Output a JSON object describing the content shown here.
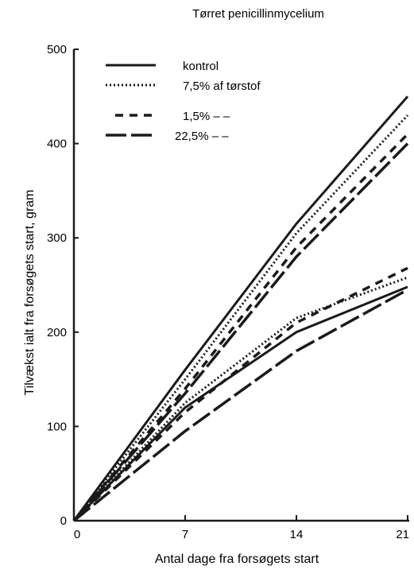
{
  "chart_data": {
    "type": "line",
    "title": "Tørret penicillinmycelium",
    "xlabel": "Antal dage fra forsøgets start",
    "ylabel": "Tilvækst ialt fra forsøgets start, gram",
    "x_ticks": [
      "0",
      "7",
      "14",
      "21"
    ],
    "y_ticks": [
      "0",
      "100",
      "200",
      "300",
      "400",
      "500"
    ],
    "xlim": [
      0,
      21
    ],
    "ylim": [
      0,
      500
    ],
    "grid": false,
    "legend_position": "top-left",
    "x": [
      0,
      7,
      14,
      21
    ],
    "series": [
      {
        "name": "kontrol",
        "style": "solid",
        "group": "upper",
        "values": [
          0,
          160,
          315,
          450
        ]
      },
      {
        "name": "7,5% af tørstof",
        "style": "dotted",
        "group": "upper",
        "values": [
          0,
          150,
          305,
          430
        ]
      },
      {
        "name": "1,5% –  –",
        "style": "dashed",
        "group": "upper",
        "values": [
          0,
          140,
          290,
          410
        ]
      },
      {
        "name": "22,5% –  –",
        "style": "longdash",
        "group": "upper",
        "values": [
          0,
          135,
          280,
          400
        ]
      },
      {
        "name": "kontrol",
        "style": "solid",
        "group": "lower",
        "values": [
          0,
          120,
          200,
          248
        ]
      },
      {
        "name": "7,5% af tørstof",
        "style": "dotted",
        "group": "lower",
        "values": [
          0,
          125,
          215,
          258
        ]
      },
      {
        "name": "1,5% –  –",
        "style": "dashed",
        "group": "lower",
        "values": [
          0,
          115,
          210,
          268
        ]
      },
      {
        "name": "22,5% –  –",
        "style": "longdash",
        "group": "lower",
        "values": [
          0,
          95,
          180,
          245
        ]
      }
    ]
  }
}
